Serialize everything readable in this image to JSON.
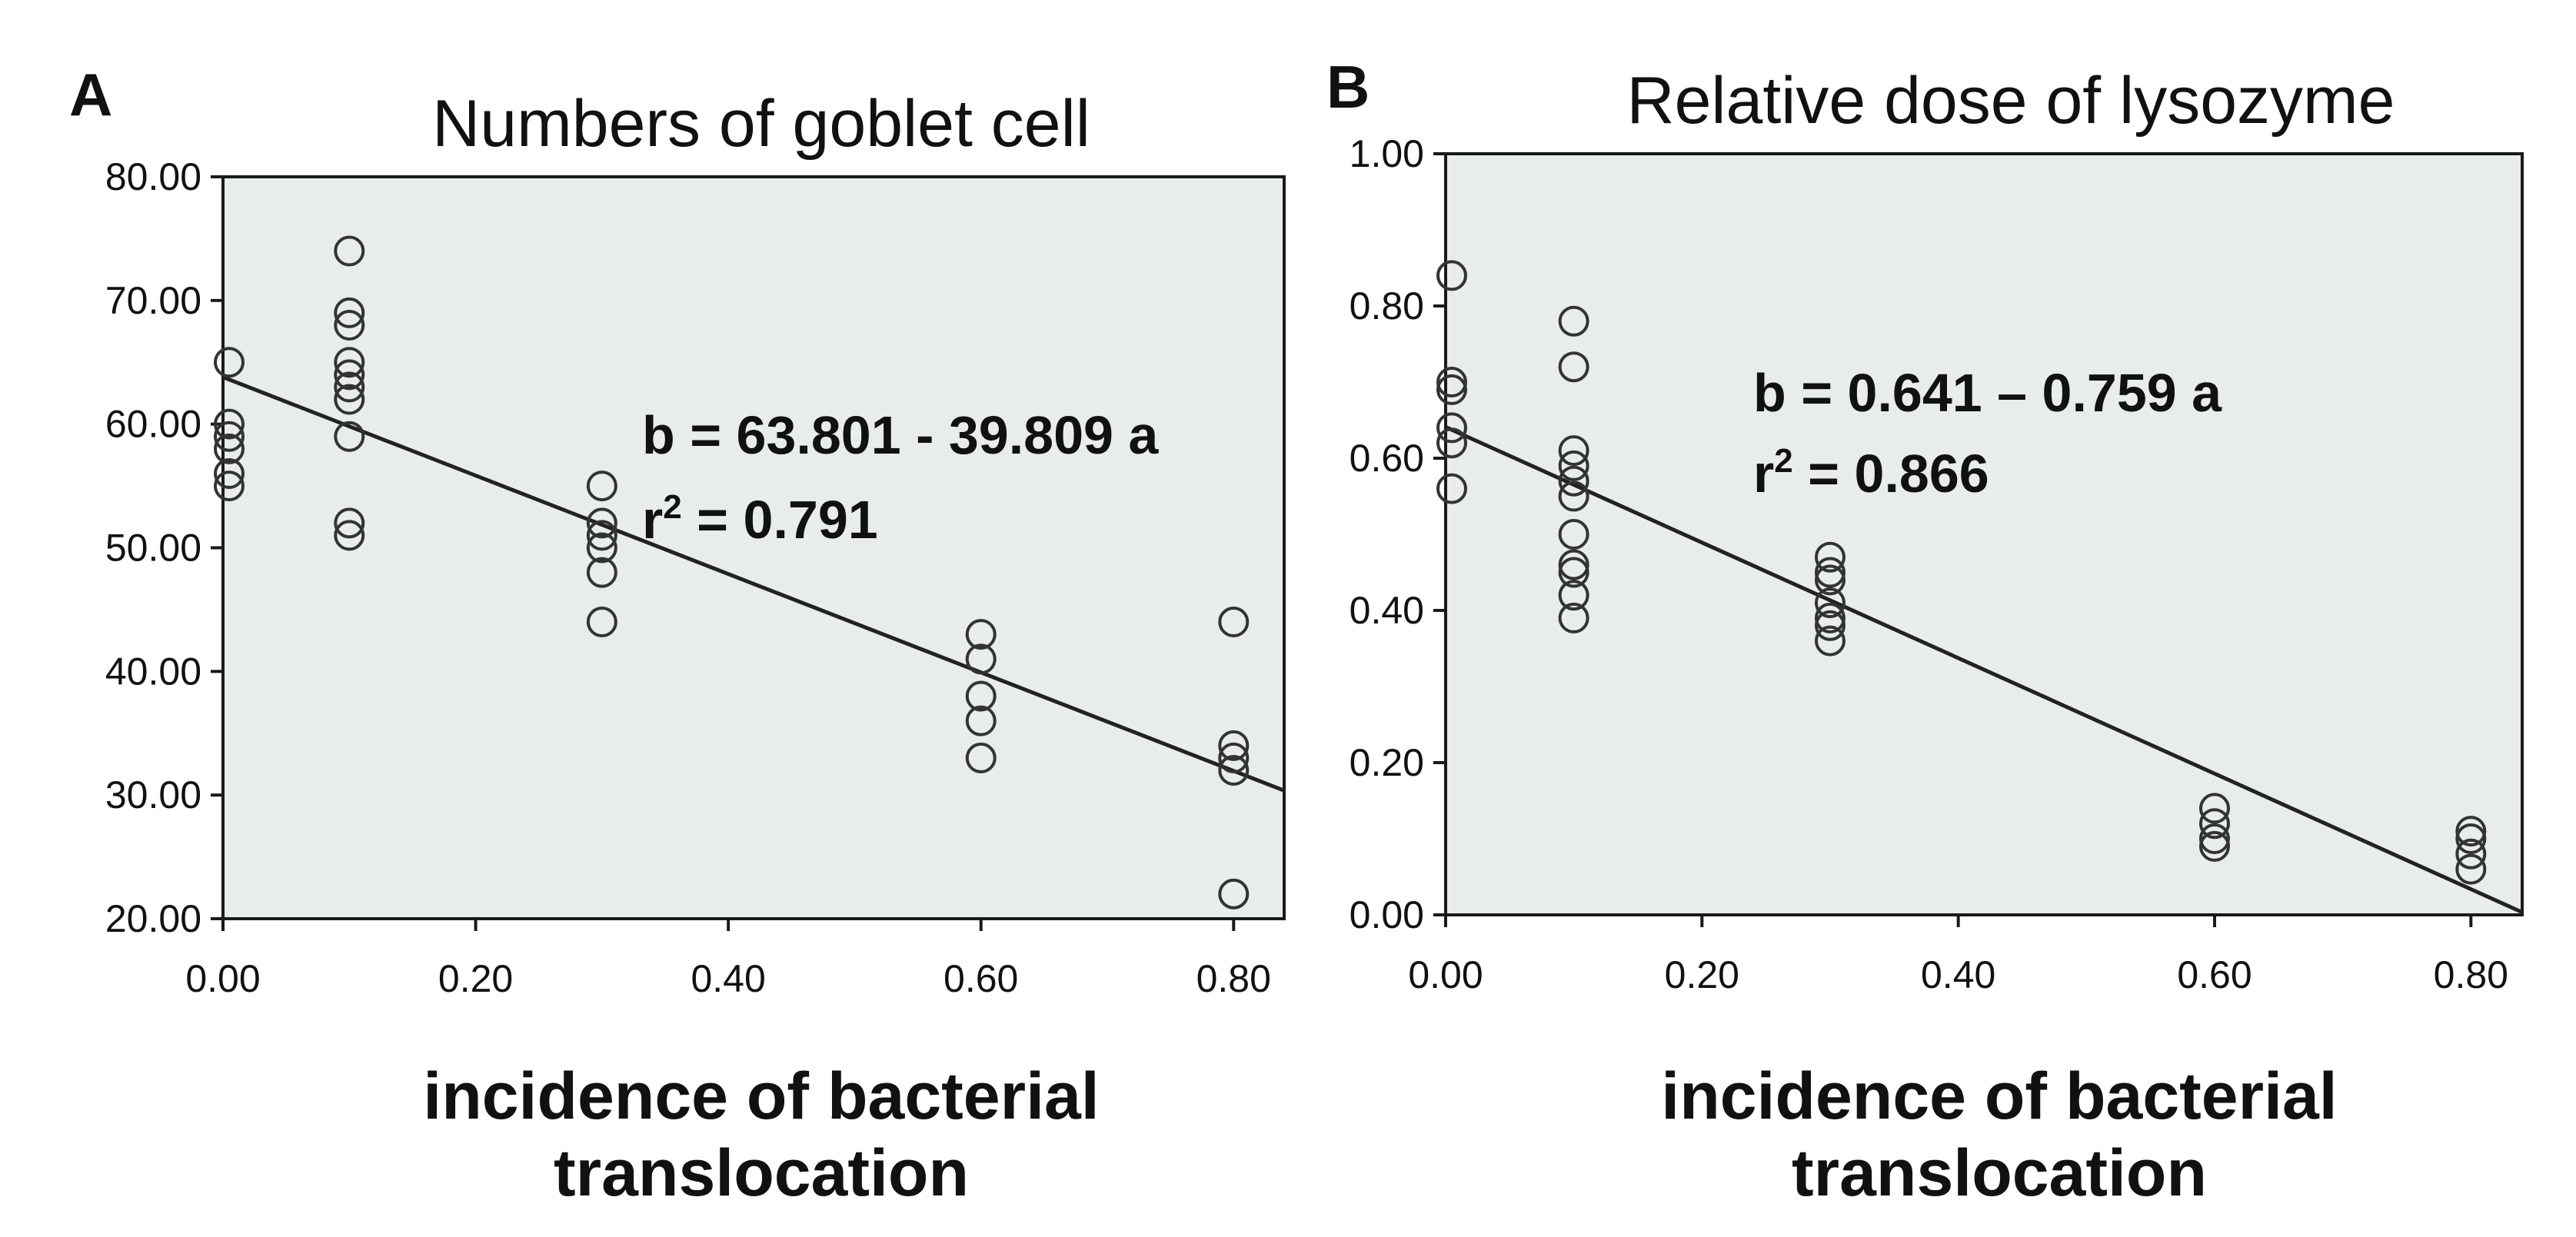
{
  "chart_data": [
    {
      "id": "A",
      "type": "scatter",
      "panel_label": "A",
      "title": "Numbers of goblet cell",
      "xlabel_lines": [
        "incidence of bacterial",
        "translocation"
      ],
      "ylabel": "",
      "xlim": [
        0,
        0.84
      ],
      "ylim": [
        20,
        80
      ],
      "xticks": [
        0,
        0.2,
        0.4,
        0.6,
        0.8
      ],
      "xtick_labels": [
        "0.00",
        "0.20",
        "0.40",
        "0.60",
        "0.80"
      ],
      "yticks": [
        20,
        30,
        40,
        50,
        60,
        70,
        80
      ],
      "ytick_labels": [
        "20.00",
        "30.00",
        "40.00",
        "50.00",
        "60.00",
        "70.00",
        "80.00"
      ],
      "points": [
        {
          "x": 0.0,
          "y": 65
        },
        {
          "x": 0.0,
          "y": 60
        },
        {
          "x": 0.0,
          "y": 59
        },
        {
          "x": 0.0,
          "y": 58
        },
        {
          "x": 0.0,
          "y": 56
        },
        {
          "x": 0.0,
          "y": 55
        },
        {
          "x": 0.1,
          "y": 74
        },
        {
          "x": 0.1,
          "y": 69
        },
        {
          "x": 0.1,
          "y": 68
        },
        {
          "x": 0.1,
          "y": 65
        },
        {
          "x": 0.1,
          "y": 64
        },
        {
          "x": 0.1,
          "y": 63
        },
        {
          "x": 0.1,
          "y": 62
        },
        {
          "x": 0.1,
          "y": 59
        },
        {
          "x": 0.1,
          "y": 52
        },
        {
          "x": 0.1,
          "y": 51
        },
        {
          "x": 0.3,
          "y": 55
        },
        {
          "x": 0.3,
          "y": 52
        },
        {
          "x": 0.3,
          "y": 51
        },
        {
          "x": 0.3,
          "y": 50
        },
        {
          "x": 0.3,
          "y": 48
        },
        {
          "x": 0.3,
          "y": 44
        },
        {
          "x": 0.6,
          "y": 43
        },
        {
          "x": 0.6,
          "y": 41
        },
        {
          "x": 0.6,
          "y": 38
        },
        {
          "x": 0.6,
          "y": 36
        },
        {
          "x": 0.6,
          "y": 33
        },
        {
          "x": 0.8,
          "y": 44
        },
        {
          "x": 0.8,
          "y": 34
        },
        {
          "x": 0.8,
          "y": 33
        },
        {
          "x": 0.8,
          "y": 32
        },
        {
          "x": 0.8,
          "y": 22
        }
      ],
      "fit": {
        "intercept": 63.801,
        "slope": -39.809
      },
      "equation": "b = 63.801 - 39.809 a",
      "r2_prefix": "r",
      "r2_exp": "2",
      "r2_value": " = 0.791"
    },
    {
      "id": "B",
      "type": "scatter",
      "panel_label": "B",
      "title": "Relative dose of lysozyme",
      "xlabel_lines": [
        "incidence of bacterial",
        "translocation"
      ],
      "ylabel": "",
      "xlim": [
        0,
        0.84
      ],
      "ylim": [
        0,
        1.0
      ],
      "xticks": [
        0,
        0.2,
        0.4,
        0.6,
        0.8
      ],
      "xtick_labels": [
        "0.00",
        "0.20",
        "0.40",
        "0.60",
        "0.80"
      ],
      "yticks": [
        0,
        0.2,
        0.4,
        0.6,
        0.8,
        1.0
      ],
      "ytick_labels": [
        "0.00",
        "0.20",
        "0.40",
        "0.60",
        "0.80",
        "1.00"
      ],
      "points": [
        {
          "x": 0.0,
          "y": 0.84
        },
        {
          "x": 0.0,
          "y": 0.7
        },
        {
          "x": 0.0,
          "y": 0.69
        },
        {
          "x": 0.0,
          "y": 0.64
        },
        {
          "x": 0.0,
          "y": 0.62
        },
        {
          "x": 0.0,
          "y": 0.56
        },
        {
          "x": 0.1,
          "y": 0.78
        },
        {
          "x": 0.1,
          "y": 0.72
        },
        {
          "x": 0.1,
          "y": 0.61
        },
        {
          "x": 0.1,
          "y": 0.59
        },
        {
          "x": 0.1,
          "y": 0.57
        },
        {
          "x": 0.1,
          "y": 0.55
        },
        {
          "x": 0.1,
          "y": 0.5
        },
        {
          "x": 0.1,
          "y": 0.46
        },
        {
          "x": 0.1,
          "y": 0.45
        },
        {
          "x": 0.1,
          "y": 0.42
        },
        {
          "x": 0.1,
          "y": 0.39
        },
        {
          "x": 0.3,
          "y": 0.47
        },
        {
          "x": 0.3,
          "y": 0.45
        },
        {
          "x": 0.3,
          "y": 0.44
        },
        {
          "x": 0.3,
          "y": 0.41
        },
        {
          "x": 0.3,
          "y": 0.39
        },
        {
          "x": 0.3,
          "y": 0.38
        },
        {
          "x": 0.3,
          "y": 0.36
        },
        {
          "x": 0.6,
          "y": 0.14
        },
        {
          "x": 0.6,
          "y": 0.12
        },
        {
          "x": 0.6,
          "y": 0.1
        },
        {
          "x": 0.6,
          "y": 0.09
        },
        {
          "x": 0.8,
          "y": 0.11
        },
        {
          "x": 0.8,
          "y": 0.1
        },
        {
          "x": 0.8,
          "y": 0.08
        },
        {
          "x": 0.8,
          "y": 0.06
        }
      ],
      "fit": {
        "intercept": 0.641,
        "slope": -0.759
      },
      "equation": "b = 0.641 – 0.759 a",
      "r2_prefix": "r",
      "r2_exp": "2",
      "r2_value": " = 0.866"
    }
  ],
  "style": {
    "plot_background": "#e8ecec",
    "marker_color": "#333333",
    "line_color": "#222222"
  }
}
